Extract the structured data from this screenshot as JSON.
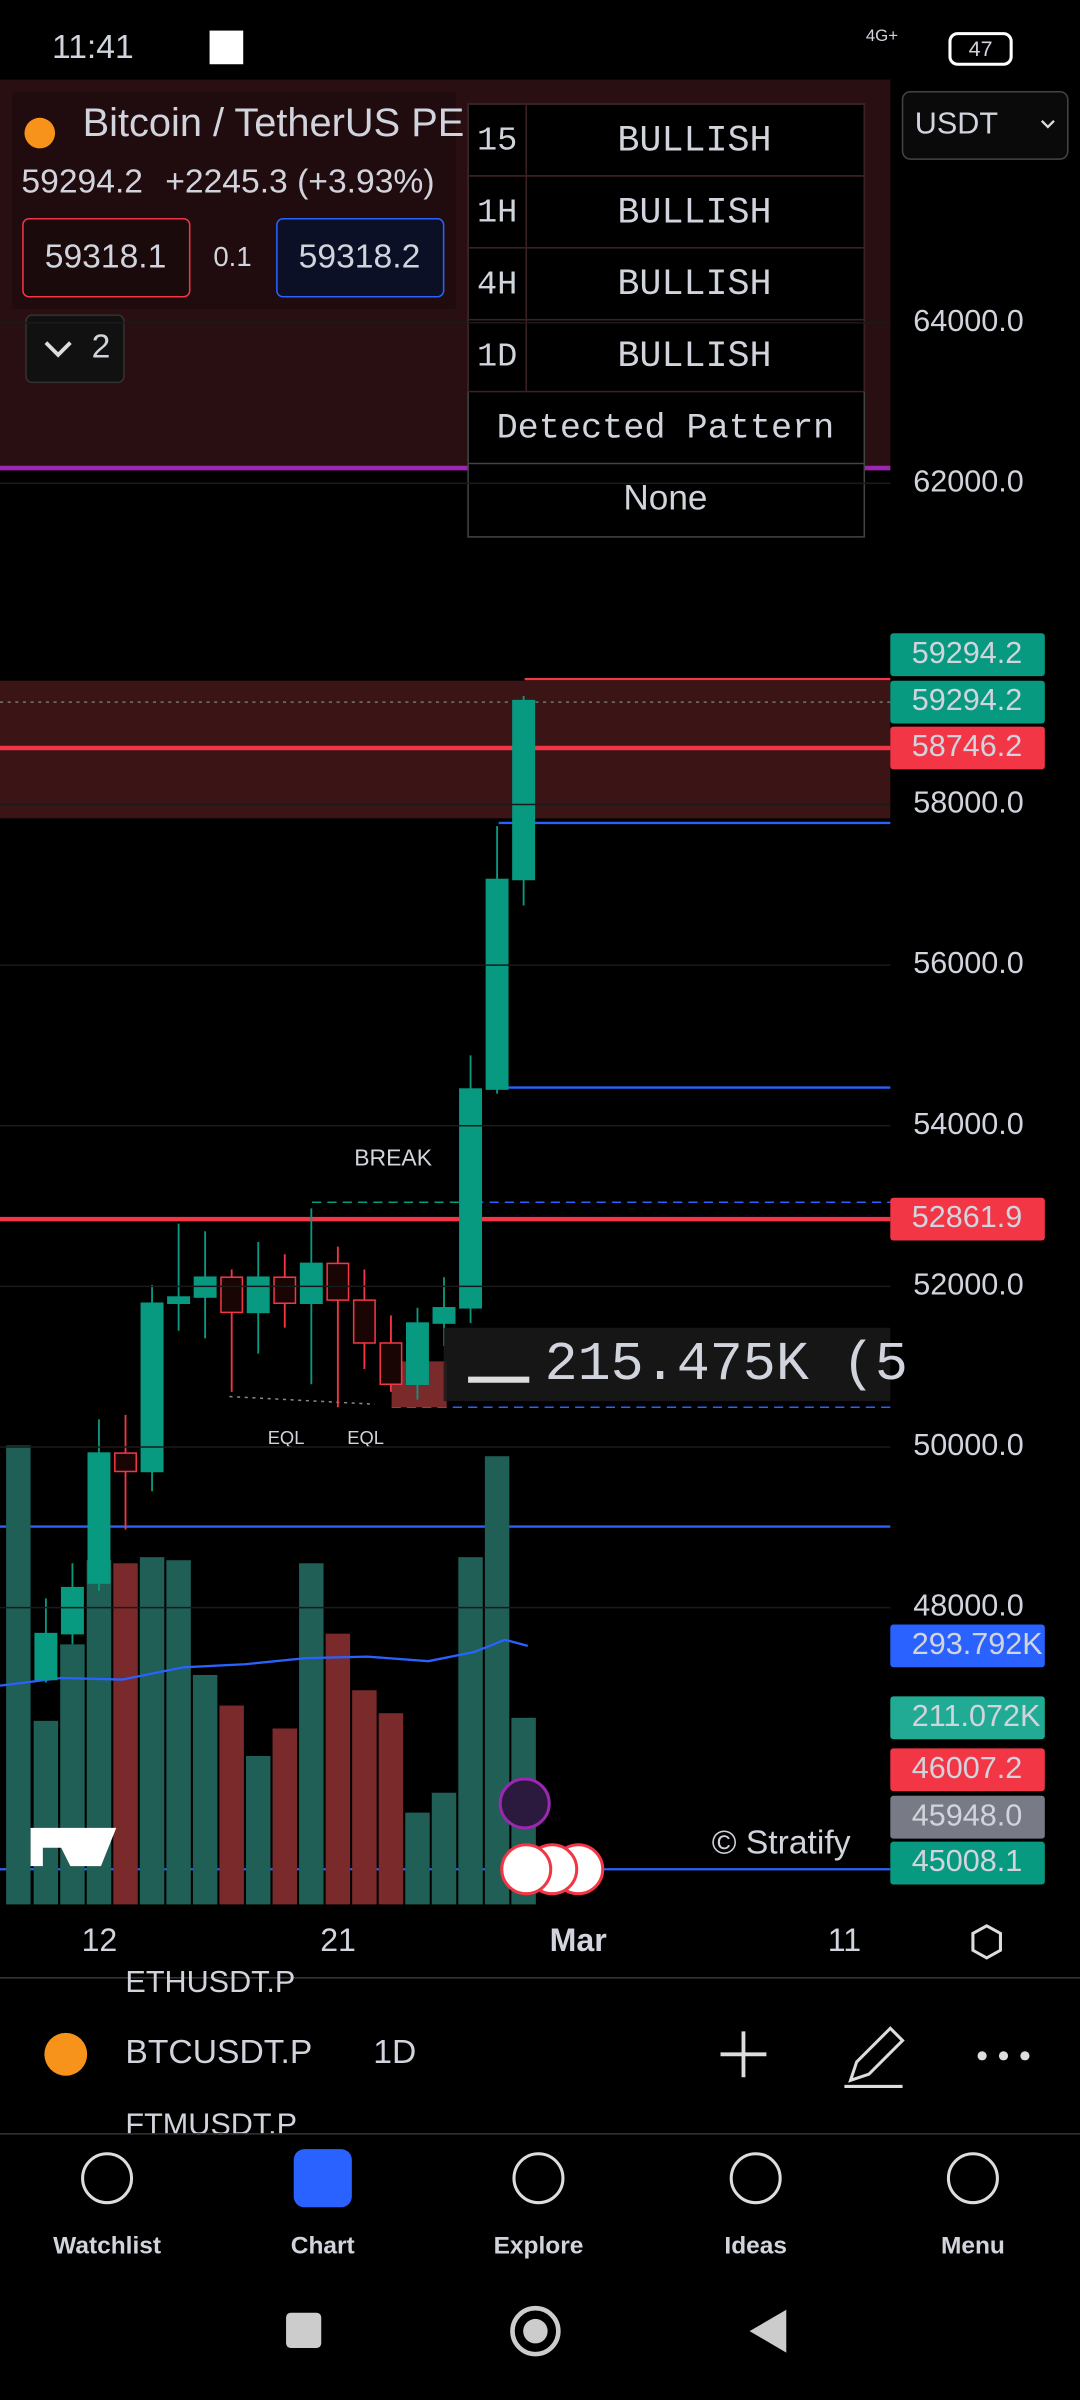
{
  "status_bar": {
    "time": "11:41",
    "network": "4G+",
    "battery": "47"
  },
  "header": {
    "title": "Bitcoin / TetherUS PERPETUAL C...",
    "price": "59294.2",
    "change": "+2245.3 (+3.93%)",
    "bid": "59318.1",
    "spread": "0.1",
    "ask": "59318.2",
    "indicators_count": "2",
    "currency": "USDT"
  },
  "trend_table": {
    "rows": [
      [
        "15",
        "BULLISH"
      ],
      [
        "1H",
        "BULLISH"
      ],
      [
        "4H",
        "BULLISH"
      ],
      [
        "1D",
        "BULLISH"
      ]
    ],
    "pattern_label": "Detected Pattern",
    "pattern_value": "None"
  },
  "price_axis": {
    "ylim": [
      44304,
      66971
    ],
    "ticks": [
      {
        "value": 64000,
        "label": "64000.0"
      },
      {
        "value": 62000,
        "label": "62000.0"
      },
      {
        "value": 58000,
        "label": "58000.0"
      },
      {
        "value": 56000,
        "label": "56000.0"
      },
      {
        "value": 54000,
        "label": "54000.0"
      },
      {
        "value": 52000,
        "label": "52000.0"
      },
      {
        "value": 50000,
        "label": "50000.0"
      },
      {
        "value": 48000,
        "label": "48000.0"
      }
    ]
  },
  "price_tags": [
    {
      "text": "59294.2",
      "color": "#089981"
    },
    {
      "text": "59294.2",
      "color": "#089981"
    },
    {
      "text": "58746.2",
      "color": "#f23645"
    },
    {
      "text": "52861.9",
      "color": "#f23645"
    },
    {
      "text": "293.792K",
      "color": "#2962ff"
    },
    {
      "text": "211.072K",
      "color": "#22ab94"
    },
    {
      "text": "46007.2",
      "color": "#f23645"
    },
    {
      "text": "45948.0",
      "color": "#787b86"
    },
    {
      "text": "45008.1",
      "color": "#089981"
    }
  ],
  "candles": {
    "open": [
      47105,
      47676,
      48305,
      49924,
      49695,
      51790,
      51867,
      52114,
      51676,
      52114,
      51790,
      52286,
      51829,
      51295,
      50781,
      51543,
      51733,
      54457,
      57067
    ],
    "high": [
      48114,
      48552,
      50343,
      50400,
      52019,
      52781,
      52686,
      52210,
      52552,
      52400,
      52972,
      52495,
      52210,
      51638,
      51733,
      52114,
      54876,
      57733,
      59352
    ],
    "low": [
      47067,
      47543,
      48210,
      48971,
      49448,
      51448,
      51352,
      50686,
      51162,
      51486,
      50781,
      50495,
      50971,
      50686,
      50590,
      51257,
      51543,
      54400,
      56743
    ],
    "close": [
      47676,
      48248,
      49924,
      49695,
      51790,
      51867,
      52114,
      51676,
      52114,
      51790,
      52286,
      51829,
      51295,
      50781,
      51543,
      51733,
      54457,
      57067,
      59294.2
    ]
  },
  "annotations": {
    "break": "BREAK",
    "eql_1": "EQL",
    "eql_2": "EQL",
    "volume_readout": "215.475K (5",
    "watermark": "© Stratify"
  },
  "date_axis": [
    "12",
    "21",
    "Mar",
    "11"
  ],
  "watchlist_peek": {
    "above": "ETHUSDT.P",
    "below": "FTMUSDT.P"
  },
  "toolbar": {
    "symbol": "BTCUSDT.P",
    "interval": "1D"
  },
  "nav": [
    "Watchlist",
    "Chart",
    "Explore",
    "Ideas",
    "Menu"
  ]
}
